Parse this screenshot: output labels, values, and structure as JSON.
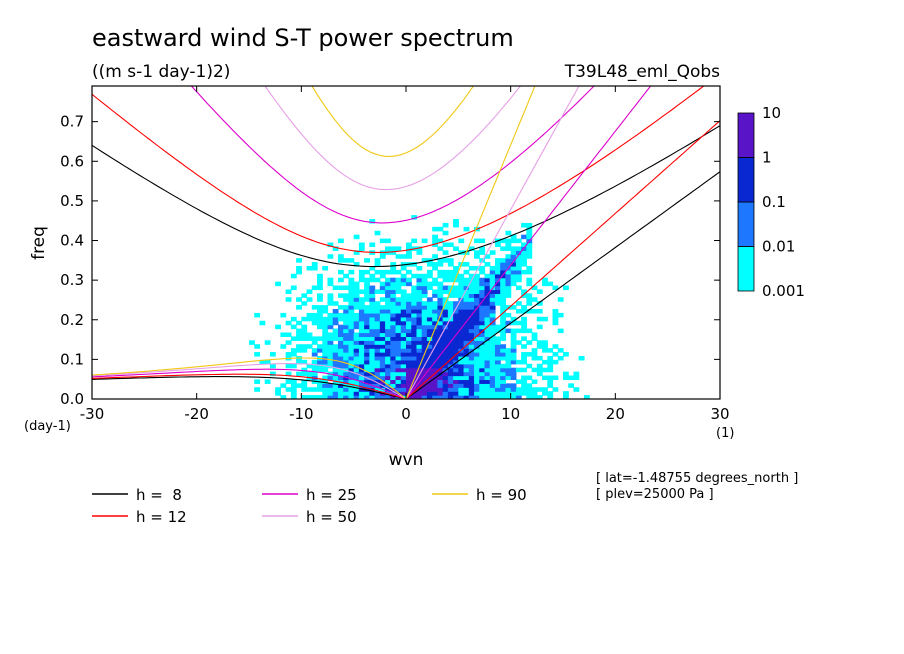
{
  "chart_data": {
    "type": "heatmap",
    "title": "eastward wind S-T power spectrum",
    "subtitle": "((m s-1 day-1)2)",
    "dataset_label": "T39L48_eml_Qobs",
    "xlabel": "wvn",
    "ylabel": "freq",
    "x_unit": "(1)",
    "y_unit": "(day-1)",
    "xlim": [
      -30,
      30
    ],
    "ylim": [
      0,
      0.79
    ],
    "x_ticks": [
      -30,
      -20,
      -10,
      0,
      10,
      20,
      30
    ],
    "x_tick_labels": [
      "-30",
      "-20",
      "-10",
      "0",
      "10",
      "20",
      "30"
    ],
    "y_ticks": [
      0.0,
      0.1,
      0.2,
      0.3,
      0.4,
      0.5,
      0.6,
      0.7
    ],
    "y_tick_labels": [
      "0.0",
      "0.1",
      "0.2",
      "0.3",
      "0.4",
      "0.5",
      "0.6",
      "0.7"
    ],
    "colorbar": {
      "levels": [
        "0.001",
        "0.01",
        "0.1",
        "1",
        "10"
      ],
      "colors": [
        "#00ffff",
        "#1e78ff",
        "#0a28d2",
        "#5a14c8"
      ]
    },
    "dispersion_curves": [
      {
        "name": "h =  8",
        "equivalent_depth": 8,
        "color": "#000000"
      },
      {
        "name": "h = 12",
        "equivalent_depth": 12,
        "color": "#ff0000"
      },
      {
        "name": "h = 25",
        "equivalent_depth": 25,
        "color": "#dd00cc"
      },
      {
        "name": "h = 50",
        "equivalent_depth": 50,
        "color": "#e6a0e6"
      },
      {
        "name": "h = 90",
        "equivalent_depth": 90,
        "color": "#f0c814"
      }
    ],
    "annotations": [
      "[ lat=-1.48755 degrees_north ]",
      "[ plev=25000 Pa ]"
    ]
  }
}
